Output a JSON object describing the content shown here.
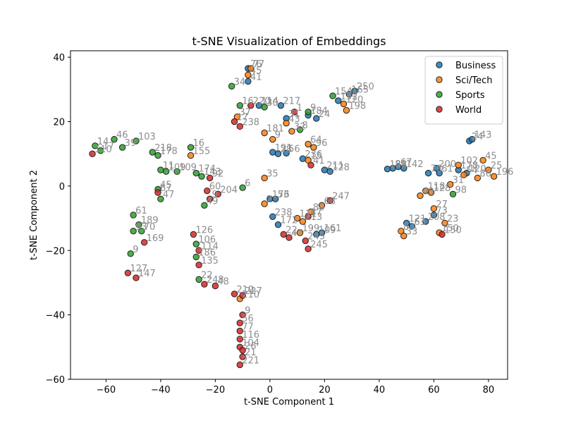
{
  "chart_data": {
    "type": "scatter",
    "title": "t-SNE Visualization of Embeddings",
    "xlabel": "t-SNE Component 1",
    "ylabel": "t-SNE Component 2",
    "xlim": [
      -73,
      87
    ],
    "ylim": [
      -60,
      42
    ],
    "xticks": [
      -60,
      -40,
      -20,
      0,
      20,
      40,
      60,
      80
    ],
    "yticks": [
      -60,
      -40,
      -20,
      0,
      20,
      40
    ],
    "grid": false,
    "legend_position": "top-right",
    "series": [
      {
        "name": "Business",
        "color": "#1f77b4",
        "points": [
          {
            "x": -8,
            "y": 36.5,
            "label": "76"
          },
          {
            "x": -8,
            "y": 32.5,
            "label": "41"
          },
          {
            "x": -4,
            "y": 25,
            "label": "114"
          },
          {
            "x": 4,
            "y": 25,
            "label": "217"
          },
          {
            "x": 6,
            "y": 21,
            "label": "31"
          },
          {
            "x": 14,
            "y": 22,
            "label": "184"
          },
          {
            "x": 17,
            "y": 21,
            "label": "24"
          },
          {
            "x": 25,
            "y": 26.5,
            "label": "152"
          },
          {
            "x": 29,
            "y": 28.5,
            "label": "165"
          },
          {
            "x": 31,
            "y": 29.5,
            "label": "250"
          },
          {
            "x": 1,
            "y": 10.5,
            "label": "191"
          },
          {
            "x": 3,
            "y": 10,
            "label": "28"
          },
          {
            "x": 6,
            "y": 10.2,
            "label": "56"
          },
          {
            "x": 12,
            "y": 8.5,
            "label": "236"
          },
          {
            "x": 20,
            "y": 5,
            "label": "211"
          },
          {
            "x": 22,
            "y": 4.5,
            "label": "128"
          },
          {
            "x": 0,
            "y": -4,
            "label": "176"
          },
          {
            "x": 2,
            "y": -4,
            "label": "53"
          },
          {
            "x": 1,
            "y": -9.5,
            "label": "238"
          },
          {
            "x": 3,
            "y": -12,
            "label": "172"
          },
          {
            "x": 17,
            "y": -15,
            "label": "109"
          },
          {
            "x": 19,
            "y": -14.5,
            "label": "161"
          },
          {
            "x": 43,
            "y": 5.3,
            "label": "188"
          },
          {
            "x": 45,
            "y": 5.5,
            "label": "81"
          },
          {
            "x": 47,
            "y": 6,
            "label": "67"
          },
          {
            "x": 49,
            "y": 5.5,
            "label": "142"
          },
          {
            "x": 58,
            "y": 4,
            "label": "78"
          },
          {
            "x": 61,
            "y": 5.5,
            "label": "200"
          },
          {
            "x": 62,
            "y": 4,
            "label": "61"
          },
          {
            "x": 69,
            "y": 5,
            "label": "178"
          },
          {
            "x": 72,
            "y": 4,
            "label": "120"
          },
          {
            "x": 73,
            "y": 14,
            "label": "24"
          },
          {
            "x": 74,
            "y": 14.5,
            "label": "143"
          },
          {
            "x": 50,
            "y": -11.5,
            "label": "121"
          },
          {
            "x": 52,
            "y": -12.5,
            "label": "63"
          },
          {
            "x": 57,
            "y": -11,
            "label": "208"
          },
          {
            "x": 60,
            "y": -9,
            "label": "73"
          }
        ]
      },
      {
        "name": "Sci/Tech",
        "color": "#ff7f0e",
        "points": [
          {
            "x": -7,
            "y": 36.5,
            "label": "77"
          },
          {
            "x": -8,
            "y": 34.5,
            "label": "45"
          },
          {
            "x": -12,
            "y": 21.5,
            "label": "37"
          },
          {
            "x": 27,
            "y": 25.5,
            "label": "120"
          },
          {
            "x": 28,
            "y": 23.5,
            "label": "198"
          },
          {
            "x": -2,
            "y": 16.5,
            "label": "181"
          },
          {
            "x": 1,
            "y": 14.5,
            "label": "9"
          },
          {
            "x": 6,
            "y": 19.5,
            "label": "43"
          },
          {
            "x": 8,
            "y": 17,
            "label": "32"
          },
          {
            "x": 14,
            "y": 13,
            "label": "64"
          },
          {
            "x": 16,
            "y": 12,
            "label": "96"
          },
          {
            "x": 14,
            "y": 8,
            "label": "15"
          },
          {
            "x": -2,
            "y": 2.5,
            "label": "35"
          },
          {
            "x": -2,
            "y": -5.5,
            "label": "2"
          },
          {
            "x": 10,
            "y": -10,
            "label": "111"
          },
          {
            "x": 12,
            "y": -11,
            "label": "213"
          },
          {
            "x": 15,
            "y": -8,
            "label": "80"
          },
          {
            "x": 19,
            "y": -6,
            "label": "68"
          },
          {
            "x": 11,
            "y": -14.5,
            "label": "199"
          },
          {
            "x": -11,
            "y": -35,
            "label": "210"
          },
          {
            "x": 48,
            "y": -14,
            "label": "83"
          },
          {
            "x": 49,
            "y": -15.5,
            "label": "33"
          },
          {
            "x": 55,
            "y": -3,
            "label": "40"
          },
          {
            "x": 57,
            "y": -1.5,
            "label": "118"
          },
          {
            "x": 59,
            "y": -2,
            "label": "128"
          },
          {
            "x": 60,
            "y": -7,
            "label": "27"
          },
          {
            "x": 62,
            "y": -14.5,
            "label": "150"
          },
          {
            "x": 64,
            "y": -11.5,
            "label": "23"
          },
          {
            "x": 66,
            "y": 0.5,
            "label": "31"
          },
          {
            "x": 69,
            "y": 6.5,
            "label": "102"
          },
          {
            "x": 71,
            "y": 3.5,
            "label": "54"
          },
          {
            "x": 76,
            "y": 2.5,
            "label": "86"
          },
          {
            "x": 78,
            "y": 8,
            "label": "45"
          },
          {
            "x": 80,
            "y": 5,
            "label": "25"
          },
          {
            "x": 82,
            "y": 3,
            "label": "196"
          },
          {
            "x": -29,
            "y": 9.5,
            "label": "155"
          }
        ]
      },
      {
        "name": "Sports",
        "color": "#2ca02c",
        "points": [
          {
            "x": -14,
            "y": 31,
            "label": "34"
          },
          {
            "x": -11,
            "y": 25,
            "label": "16"
          },
          {
            "x": -2,
            "y": 24.5,
            "label": "30"
          },
          {
            "x": 14,
            "y": 23,
            "label": "9"
          },
          {
            "x": 23,
            "y": 28,
            "label": "154"
          },
          {
            "x": 11,
            "y": 17.5,
            "label": "8"
          },
          {
            "x": -64,
            "y": 12.5,
            "label": "14"
          },
          {
            "x": -62,
            "y": 11,
            "label": "17"
          },
          {
            "x": -57,
            "y": 14.5,
            "label": "46"
          },
          {
            "x": -54,
            "y": 12,
            "label": "39"
          },
          {
            "x": -49,
            "y": 14,
            "label": "103"
          },
          {
            "x": -43,
            "y": 10.5,
            "label": "218"
          },
          {
            "x": -41,
            "y": 9.5,
            "label": "178"
          },
          {
            "x": -40,
            "y": 5,
            "label": "11"
          },
          {
            "x": -38,
            "y": 4.5,
            "label": "109"
          },
          {
            "x": -34,
            "y": 4.5,
            "label": "109"
          },
          {
            "x": -29,
            "y": 12,
            "label": "16"
          },
          {
            "x": -27,
            "y": 4,
            "label": "174"
          },
          {
            "x": -25,
            "y": 3,
            "label": "143"
          },
          {
            "x": -24,
            "y": -6,
            "label": "49"
          },
          {
            "x": -10,
            "y": -0.5,
            "label": "6"
          },
          {
            "x": -41,
            "y": -1,
            "label": "45"
          },
          {
            "x": -40,
            "y": -4,
            "label": "47"
          },
          {
            "x": -50,
            "y": -9,
            "label": "61"
          },
          {
            "x": -48,
            "y": -12,
            "label": "189"
          },
          {
            "x": -47,
            "y": -14,
            "label": "70"
          },
          {
            "x": -50,
            "y": -14,
            "label": "93"
          },
          {
            "x": -51,
            "y": -21,
            "label": "9"
          },
          {
            "x": -27,
            "y": -18,
            "label": "106"
          },
          {
            "x": -27,
            "y": -22,
            "label": "186"
          },
          {
            "x": -26,
            "y": -29,
            "label": "22"
          },
          {
            "x": 67,
            "y": -2.5,
            "label": "98"
          }
        ]
      },
      {
        "name": "World",
        "color": "#d62728",
        "points": [
          {
            "x": -7,
            "y": 25,
            "label": "220"
          },
          {
            "x": -13,
            "y": 20,
            "label": "17"
          },
          {
            "x": -11,
            "y": 18.5,
            "label": "238"
          },
          {
            "x": 9,
            "y": 23,
            "label": "1"
          },
          {
            "x": 15,
            "y": 6.5,
            "label": "41"
          },
          {
            "x": -65,
            "y": 10,
            "label": "110"
          },
          {
            "x": -41,
            "y": -2,
            "label": "67"
          },
          {
            "x": -22,
            "y": 2.5,
            "label": "92"
          },
          {
            "x": -23,
            "y": -1.5,
            "label": "60"
          },
          {
            "x": -19,
            "y": -2.5,
            "label": "204"
          },
          {
            "x": -22,
            "y": -4,
            "label": "9"
          },
          {
            "x": 5,
            "y": -15,
            "label": "22"
          },
          {
            "x": 7,
            "y": -16,
            "label": "47"
          },
          {
            "x": 13,
            "y": -17,
            "label": "245"
          },
          {
            "x": 14,
            "y": -19.5,
            "label": "245"
          },
          {
            "x": 14,
            "y": -9.5,
            "label": "87"
          },
          {
            "x": 22,
            "y": -4.5,
            "label": "247"
          },
          {
            "x": -46,
            "y": -17.5,
            "label": "169"
          },
          {
            "x": -52,
            "y": -27,
            "label": "127"
          },
          {
            "x": -49,
            "y": -28.5,
            "label": "147"
          },
          {
            "x": -28,
            "y": -15,
            "label": "126"
          },
          {
            "x": -26,
            "y": -20,
            "label": "114"
          },
          {
            "x": -26,
            "y": -24.5,
            "label": "135"
          },
          {
            "x": -24,
            "y": -30.5,
            "label": "248"
          },
          {
            "x": -20,
            "y": -31,
            "label": "48"
          },
          {
            "x": -13,
            "y": -33.5,
            "label": "219"
          },
          {
            "x": -10,
            "y": -34,
            "label": "227"
          },
          {
            "x": -10,
            "y": -40,
            "label": "9"
          },
          {
            "x": -11,
            "y": -42.5,
            "label": "56"
          },
          {
            "x": -11,
            "y": -45,
            "label": "77"
          },
          {
            "x": -11,
            "y": -47.5,
            "label": "116"
          },
          {
            "x": -11,
            "y": -50,
            "label": "104"
          },
          {
            "x": -10,
            "y": -51,
            "label": "26"
          },
          {
            "x": -10,
            "y": -53,
            "label": "21"
          },
          {
            "x": -11,
            "y": -55.5,
            "label": "221"
          },
          {
            "x": 63,
            "y": -15,
            "label": "150"
          }
        ]
      }
    ]
  }
}
